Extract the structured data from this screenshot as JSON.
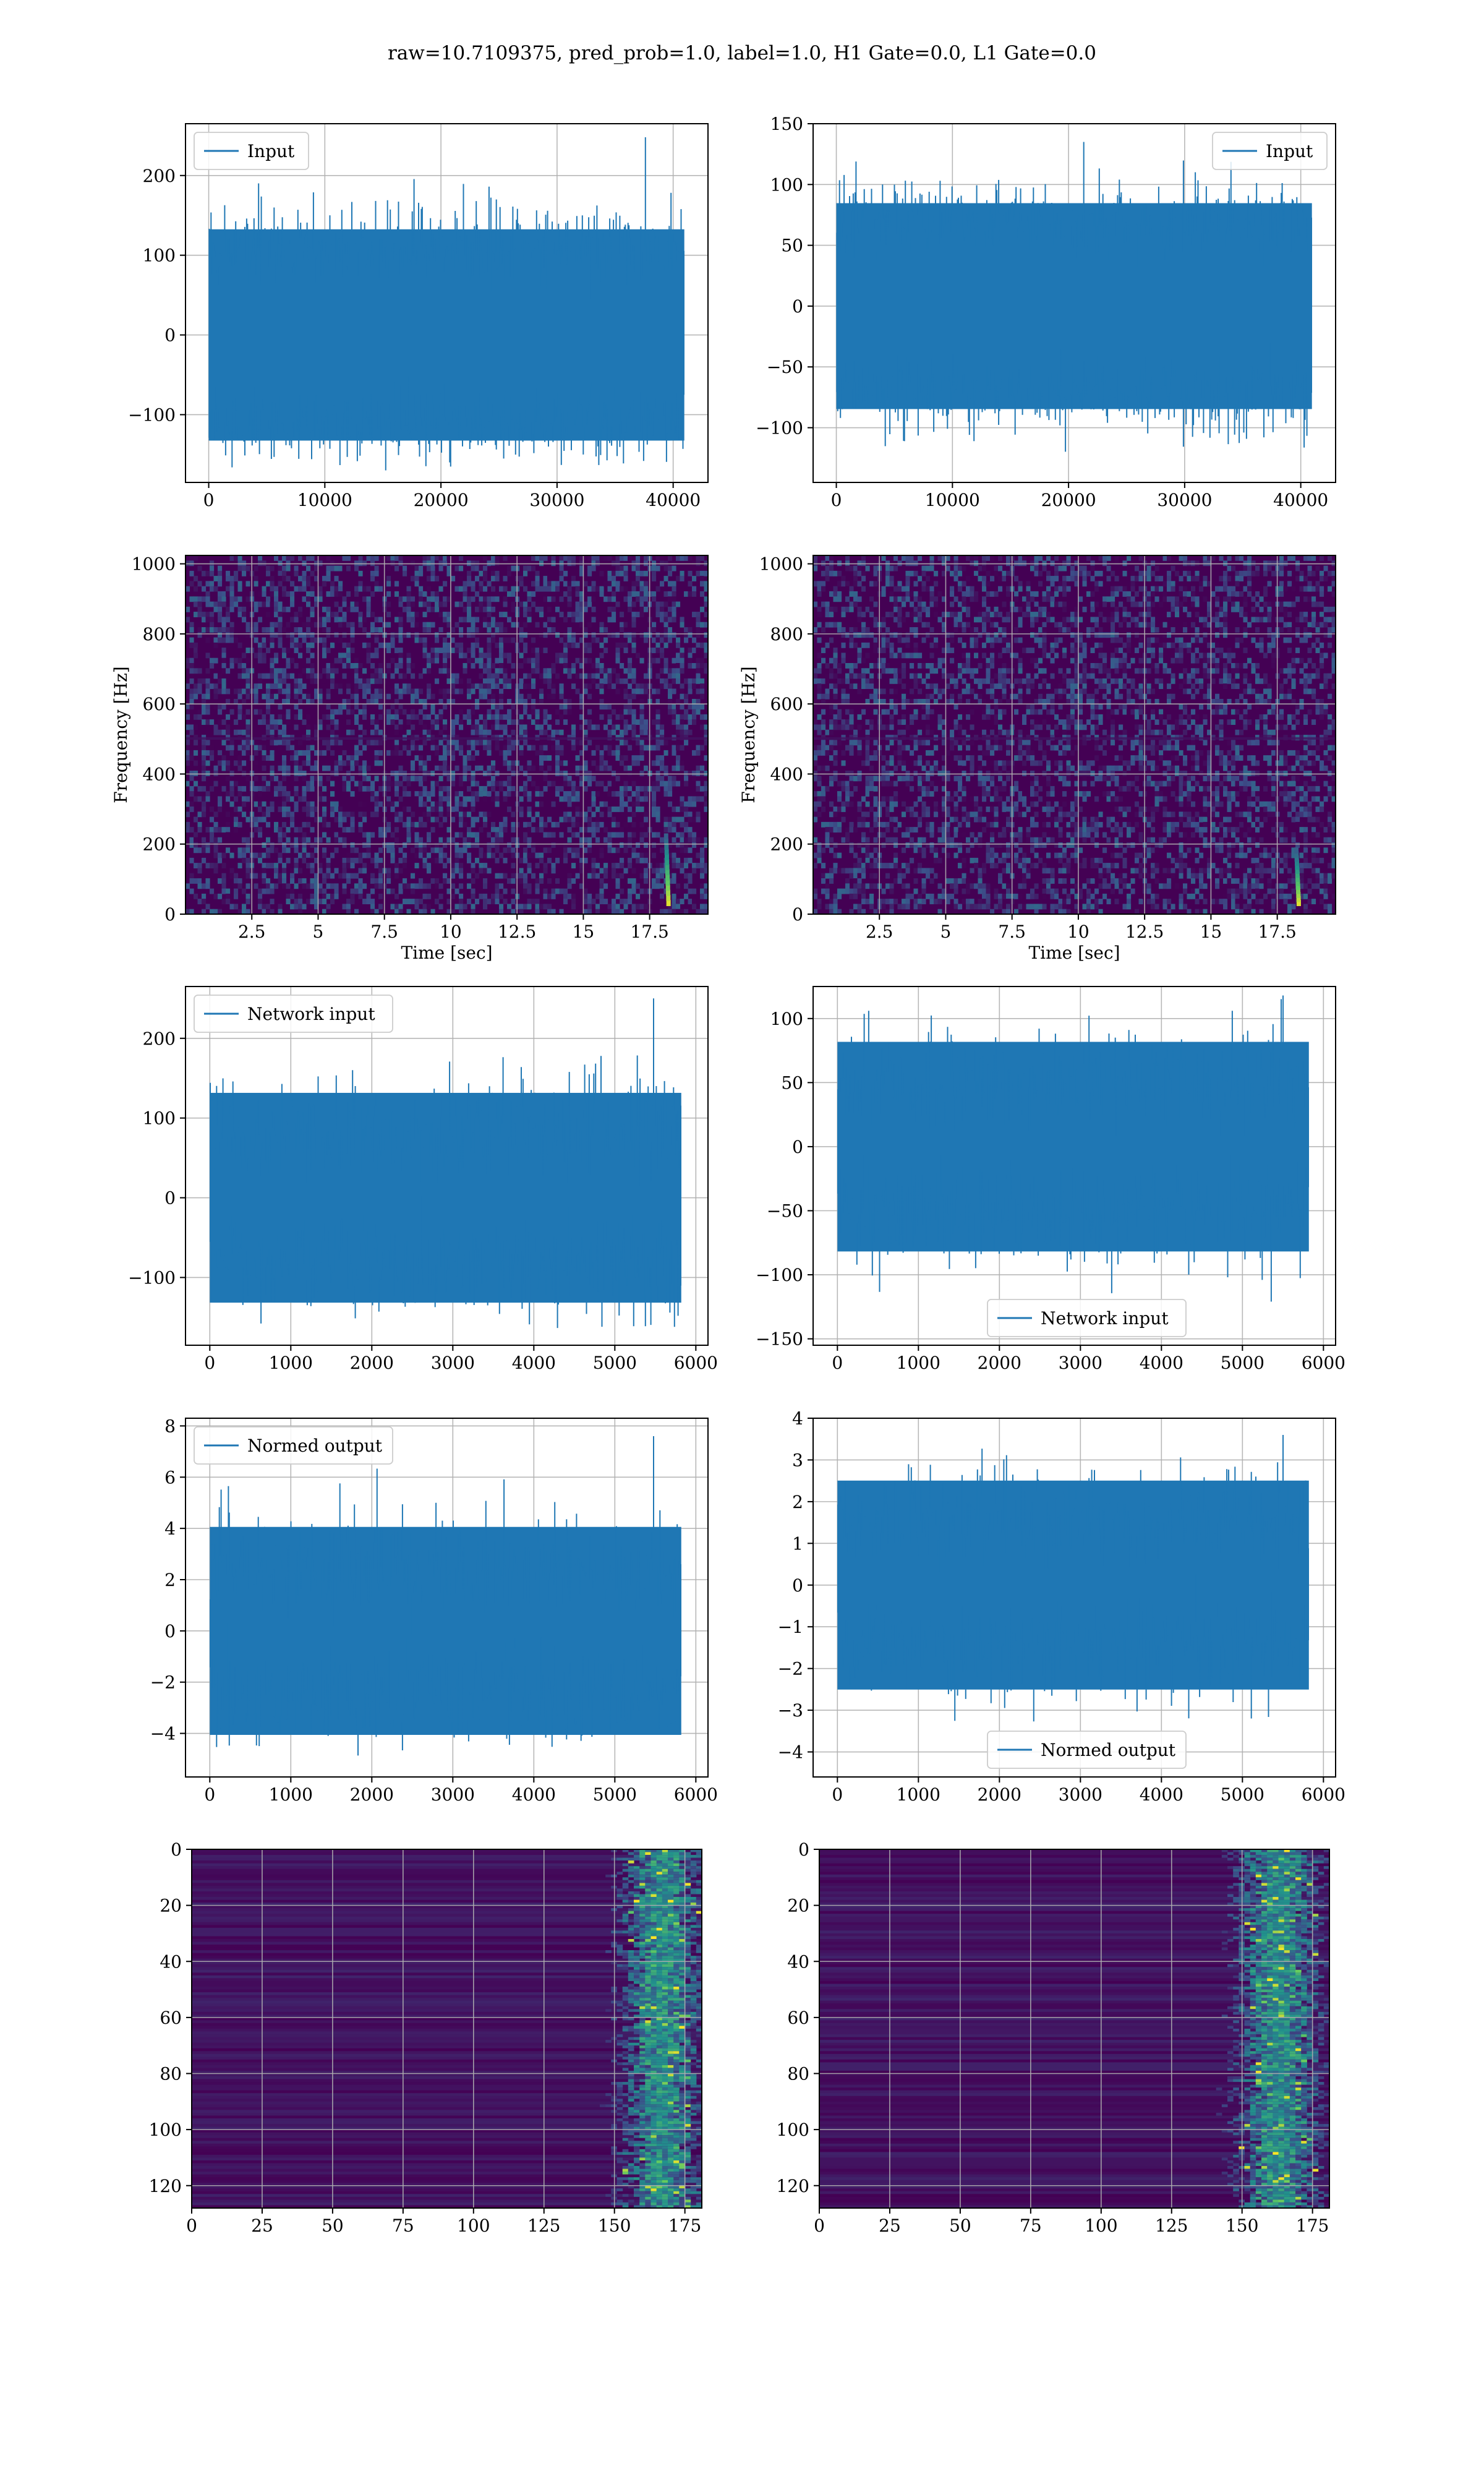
{
  "figure": {
    "title": "raw=10.7109375, pred_prob=1.0, label=1.0, H1 Gate=0.0, L1 Gate=0.0"
  },
  "colors": {
    "line": "#1f77b4",
    "grid": "#b0b0b0",
    "viridis_low": "#440154",
    "viridis_mid": "#21918c",
    "viridis_high": "#fde725"
  },
  "chart_data": [
    {
      "id": "input-h1",
      "type": "line",
      "panel": "row1-left",
      "legend": [
        "Input"
      ],
      "legend_loc": "upper left",
      "xlim": [
        -2000,
        43000
      ],
      "ylim": [
        -185,
        265
      ],
      "xticks": [
        0,
        10000,
        20000,
        30000,
        40000
      ],
      "yticks": [
        -100,
        0,
        100,
        200
      ],
      "n_points": 40960,
      "y_range": [
        -170,
        248
      ],
      "peak_x": 37600,
      "grid": true
    },
    {
      "id": "input-l1",
      "type": "line",
      "panel": "row1-right",
      "legend": [
        "Input"
      ],
      "legend_loc": "upper right",
      "xlim": [
        -2000,
        43000
      ],
      "ylim": [
        -145,
        150
      ],
      "xticks": [
        0,
        10000,
        20000,
        30000,
        40000
      ],
      "yticks": [
        -100,
        -50,
        0,
        50,
        100,
        150
      ],
      "n_points": 40960,
      "y_range": [
        -132,
        135
      ],
      "peak_x": 21300,
      "grid": true
    },
    {
      "id": "spectrogram-h1",
      "type": "heatmap",
      "panel": "row2-left",
      "xlabel": "Time [sec]",
      "ylabel": "Frequency [Hz]",
      "xlim": [
        0,
        19.7
      ],
      "ylim": [
        0,
        1024
      ],
      "xticks": [
        2.5,
        5.0,
        7.5,
        10.0,
        12.5,
        15.0,
        17.5
      ],
      "yticks": [
        0,
        200,
        400,
        600,
        800,
        1000
      ],
      "chirp_time": 18.2,
      "chirp_max_freq": 220,
      "grid": true,
      "colormap": "viridis"
    },
    {
      "id": "spectrogram-l1",
      "type": "heatmap",
      "panel": "row2-right",
      "xlabel": "Time [sec]",
      "ylabel": "Frequency [Hz]",
      "xlim": [
        0,
        19.7
      ],
      "ylim": [
        0,
        1024
      ],
      "xticks": [
        2.5,
        5.0,
        7.5,
        10.0,
        12.5,
        15.0,
        17.5
      ],
      "yticks": [
        0,
        200,
        400,
        600,
        800,
        1000
      ],
      "chirp_time": 18.3,
      "chirp_max_freq": 180,
      "grid": true,
      "colormap": "viridis"
    },
    {
      "id": "network-input-h1",
      "type": "line",
      "panel": "row3-left",
      "legend": [
        "Network input"
      ],
      "legend_loc": "upper left",
      "xlim": [
        -300,
        6150
      ],
      "ylim": [
        -185,
        265
      ],
      "xticks": [
        0,
        1000,
        2000,
        3000,
        4000,
        5000,
        6000
      ],
      "yticks": [
        -100,
        0,
        100,
        200
      ],
      "n_points": 5820,
      "y_range": [
        -165,
        250
      ],
      "peak_x": 5480,
      "grid": true
    },
    {
      "id": "network-input-l1",
      "type": "line",
      "panel": "row3-right",
      "legend": [
        "Network input"
      ],
      "legend_loc": "lower center",
      "xlim": [
        -300,
        6150
      ],
      "ylim": [
        -155,
        125
      ],
      "xticks": [
        0,
        1000,
        2000,
        3000,
        4000,
        5000,
        6000
      ],
      "yticks": [
        -150,
        -100,
        -50,
        0,
        50,
        100
      ],
      "n_points": 5820,
      "y_range": [
        -140,
        118
      ],
      "peak_x": 5500,
      "grid": true
    },
    {
      "id": "normed-output-h1",
      "type": "line",
      "panel": "row4-left",
      "legend": [
        "Normed output"
      ],
      "legend_loc": "upper left",
      "xlim": [
        -300,
        6150
      ],
      "ylim": [
        -5.7,
        8.3
      ],
      "xticks": [
        0,
        1000,
        2000,
        3000,
        4000,
        5000,
        6000
      ],
      "yticks": [
        -4,
        -2,
        0,
        2,
        4,
        6,
        8
      ],
      "n_points": 5820,
      "y_range": [
        -5.2,
        7.6
      ],
      "peak_x": 5480,
      "grid": true
    },
    {
      "id": "normed-output-l1",
      "type": "line",
      "panel": "row4-right",
      "legend": [
        "Normed output"
      ],
      "legend_loc": "lower center",
      "xlim": [
        -300,
        6150
      ],
      "ylim": [
        -4.6,
        4.0
      ],
      "xticks": [
        0,
        1000,
        2000,
        3000,
        4000,
        5000,
        6000
      ],
      "yticks": [
        -4,
        -3,
        -2,
        -1,
        0,
        1,
        2,
        3,
        4
      ],
      "n_points": 5820,
      "y_range": [
        -4.3,
        3.6
      ],
      "peak_x": 5500,
      "grid": true
    },
    {
      "id": "feature-map-h1",
      "type": "heatmap",
      "panel": "row5-left",
      "xlim": [
        0,
        181
      ],
      "ylim": [
        128,
        0
      ],
      "xticks": [
        0,
        25,
        50,
        75,
        100,
        125,
        150,
        175
      ],
      "yticks": [
        0,
        20,
        40,
        60,
        80,
        100,
        120
      ],
      "rows": 128,
      "cols": 181,
      "hot_col": 167,
      "grid": true,
      "colormap": "viridis"
    },
    {
      "id": "feature-map-l1",
      "type": "heatmap",
      "panel": "row5-right",
      "xlim": [
        0,
        181
      ],
      "ylim": [
        128,
        0
      ],
      "xticks": [
        0,
        25,
        50,
        75,
        100,
        125,
        150,
        175
      ],
      "yticks": [
        0,
        20,
        40,
        60,
        80,
        100,
        120
      ],
      "rows": 128,
      "cols": 181,
      "hot_col": 163,
      "grid": true,
      "colormap": "viridis"
    }
  ]
}
